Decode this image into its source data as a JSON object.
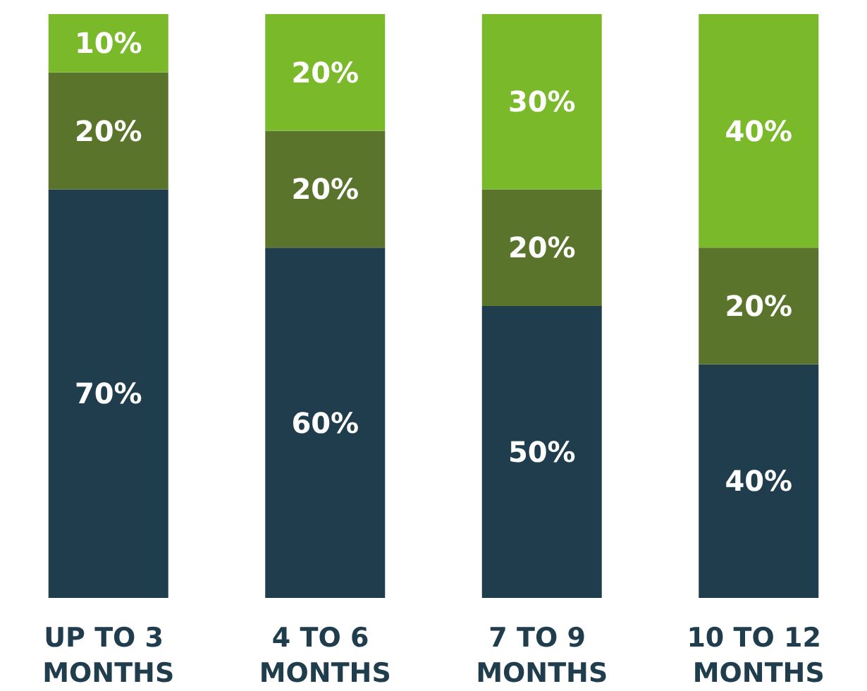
{
  "chart_data": {
    "type": "bar",
    "stacked": true,
    "tick_labels": "x",
    "categories": [
      "UP TO 3 MONTHS",
      "4 TO 6 MONTHS",
      "7 TO 9 MONTHS",
      "10 TO 12 MONTHS"
    ],
    "series": [
      {
        "color": "#203d4e",
        "values": [
          70,
          60,
          50,
          40
        ],
        "value_labels": [
          "70%",
          "60%",
          "50%",
          "40%"
        ]
      },
      {
        "color": "#5a752b",
        "values": [
          20,
          20,
          20,
          20
        ],
        "value_labels": [
          "20%",
          "20%",
          "20%",
          "20%"
        ]
      },
      {
        "color": "#7ab929",
        "values": [
          10,
          20,
          30,
          40
        ],
        "value_labels": [
          "10%",
          "20%",
          "30%",
          "40%"
        ]
      }
    ]
  }
}
